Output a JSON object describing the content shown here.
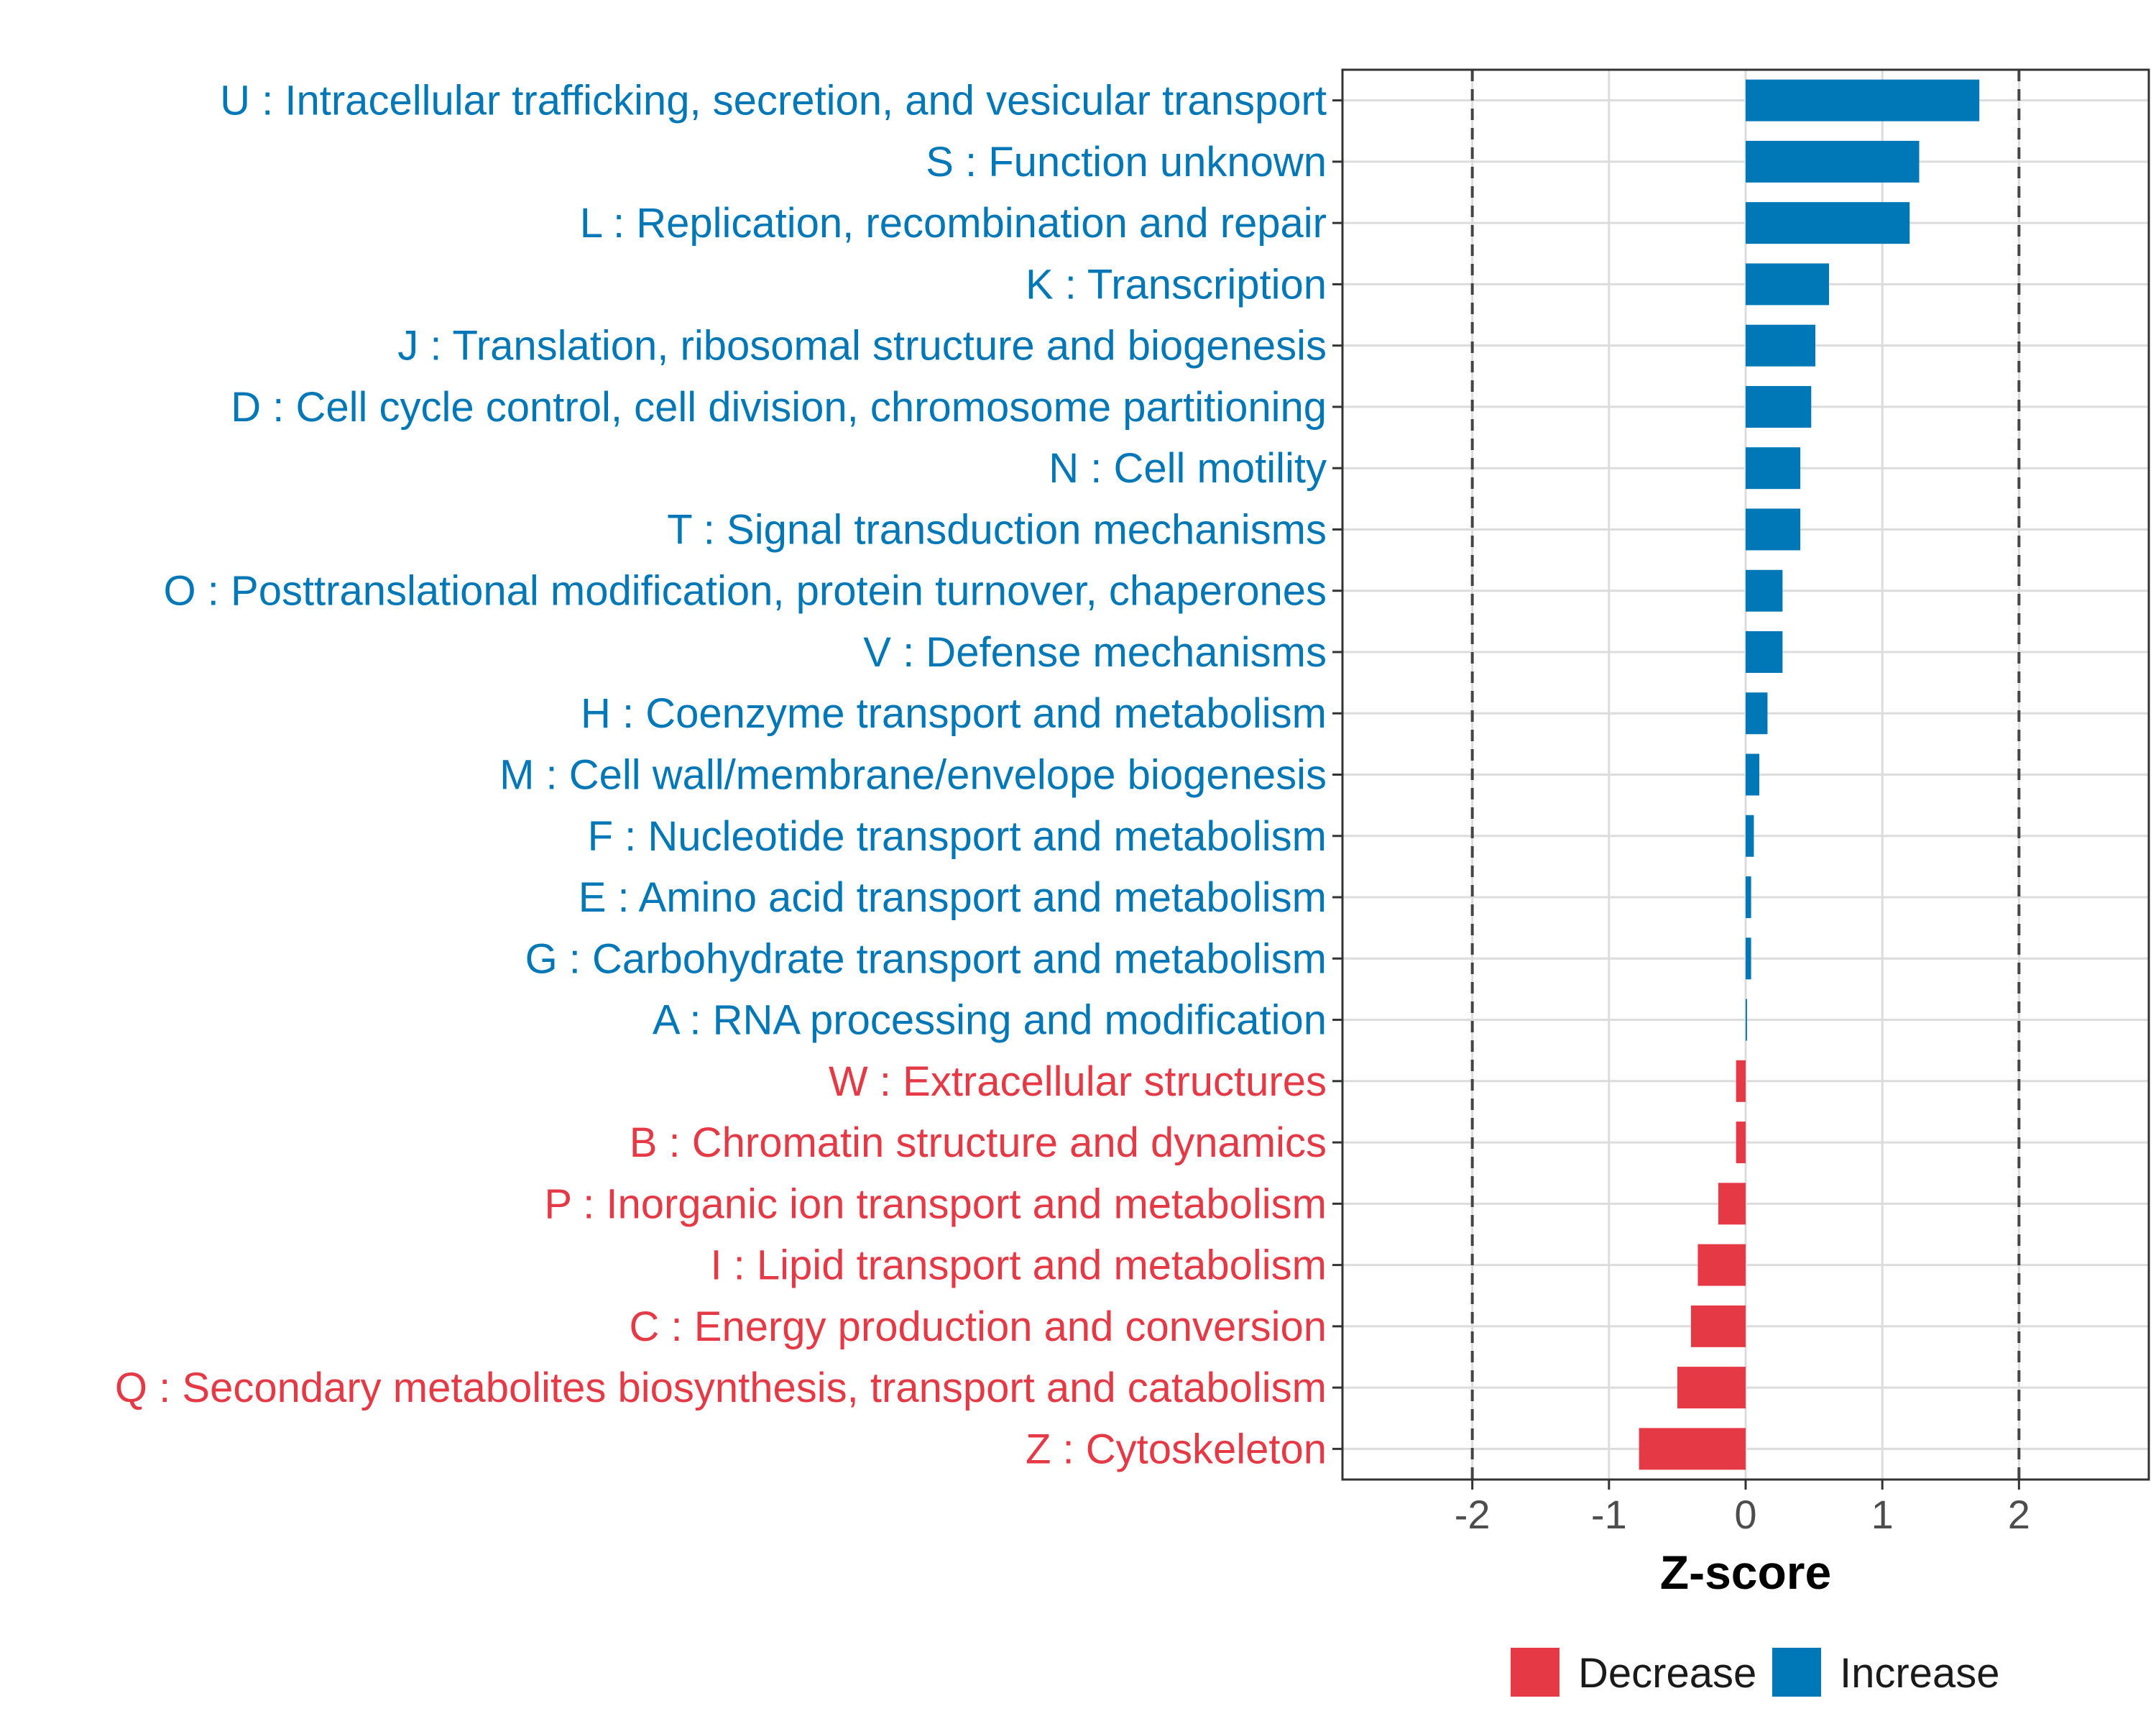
{
  "chart_data": {
    "type": "bar",
    "orientation": "horizontal",
    "title": "",
    "xlabel": "Z-score",
    "ylabel": "",
    "xlim": [
      -2.95,
      2.95
    ],
    "x_ticks": [
      -2,
      -1,
      0,
      1,
      2
    ],
    "x_tick_labels": [
      "-2",
      "-1",
      "0",
      "1",
      "2"
    ],
    "reference_lines": [
      -2,
      2
    ],
    "grid": true,
    "colors": {
      "Decrease": "#e63946",
      "Increase": "#0077b6"
    },
    "legend": {
      "position": "bottom",
      "entries": [
        {
          "name": "Decrease",
          "color": "#e63946"
        },
        {
          "name": "Increase",
          "color": "#0077b6"
        }
      ]
    },
    "categories": [
      "U : Intracellular trafficking, secretion, and vesicular transport",
      "S : Function unknown",
      "L : Replication, recombination and repair",
      "K : Transcription",
      "J : Translation, ribosomal structure and biogenesis",
      "D : Cell cycle control, cell division, chromosome partitioning",
      "N : Cell motility",
      "T : Signal transduction mechanisms",
      "O : Posttranslational modification, protein turnover, chaperones",
      "V : Defense mechanisms",
      "H : Coenzyme transport and metabolism",
      "M : Cell wall/membrane/envelope biogenesis",
      "F : Nucleotide transport and metabolism",
      "E : Amino acid transport and metabolism",
      "G : Carbohydrate transport and metabolism",
      "A : RNA processing and modification",
      "W : Extracellular structures",
      "B : Chromatin structure and dynamics",
      "P : Inorganic ion transport and metabolism",
      "I : Lipid transport and metabolism",
      "C : Energy production and conversion",
      "Q : Secondary metabolites biosynthesis, transport and catabolism",
      "Z : Cytoskeleton"
    ],
    "values": [
      1.71,
      1.27,
      1.2,
      0.61,
      0.51,
      0.48,
      0.4,
      0.4,
      0.27,
      0.27,
      0.16,
      0.1,
      0.06,
      0.04,
      0.04,
      0.01,
      -0.07,
      -0.07,
      -0.2,
      -0.35,
      -0.4,
      -0.5,
      -0.78
    ],
    "groups": [
      "Increase",
      "Increase",
      "Increase",
      "Increase",
      "Increase",
      "Increase",
      "Increase",
      "Increase",
      "Increase",
      "Increase",
      "Increase",
      "Increase",
      "Increase",
      "Increase",
      "Increase",
      "Increase",
      "Decrease",
      "Decrease",
      "Decrease",
      "Decrease",
      "Decrease",
      "Decrease",
      "Decrease"
    ]
  }
}
